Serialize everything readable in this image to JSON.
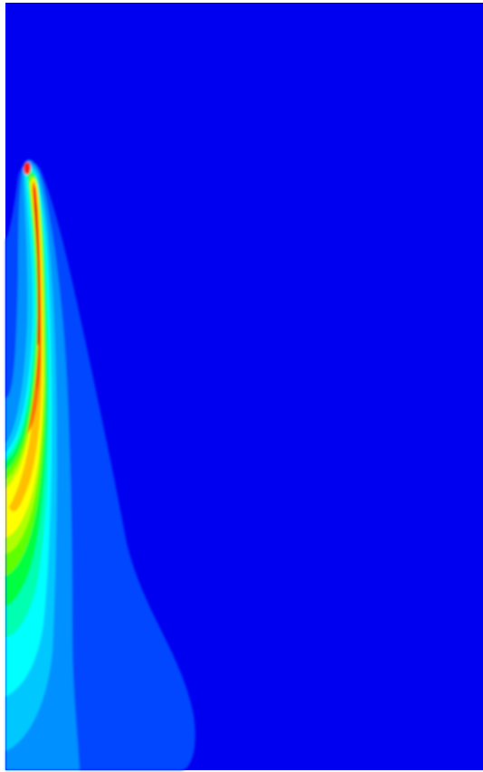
{
  "figure": {
    "kind": "filled-contour-field",
    "colormap": "jet",
    "background_level_color": "#0000f0",
    "level_colors": [
      "#0000f0",
      "#0046ff",
      "#0090ff",
      "#00c8ff",
      "#00ffff",
      "#00ffb0",
      "#00ff40",
      "#60ff00",
      "#b0ff00",
      "#ffff00",
      "#ffc000",
      "#ff7000",
      "#ff1a00",
      "#d00000"
    ],
    "legend": "none",
    "axes": "none",
    "grid": false
  }
}
